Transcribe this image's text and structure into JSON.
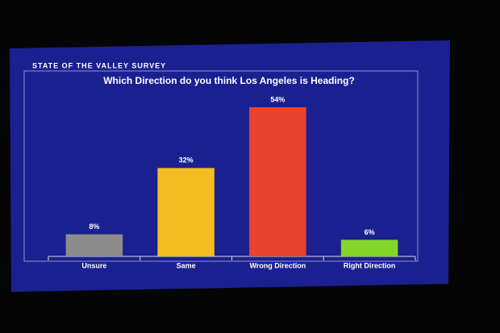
{
  "chart_data": {
    "type": "bar",
    "header": "STATE OF THE VALLEY SURVEY",
    "title": "Which Direction do you think Los Angeles is Heading?",
    "categories": [
      "Unsure",
      "Same",
      "Wrong Direction",
      "Right Direction"
    ],
    "values": [
      8,
      32,
      54,
      6
    ],
    "value_labels": [
      "8%",
      "32%",
      "54%",
      "6%"
    ],
    "colors": [
      "#8c8c8c",
      "#f2be22",
      "#e8432f",
      "#84d62a"
    ]
  }
}
